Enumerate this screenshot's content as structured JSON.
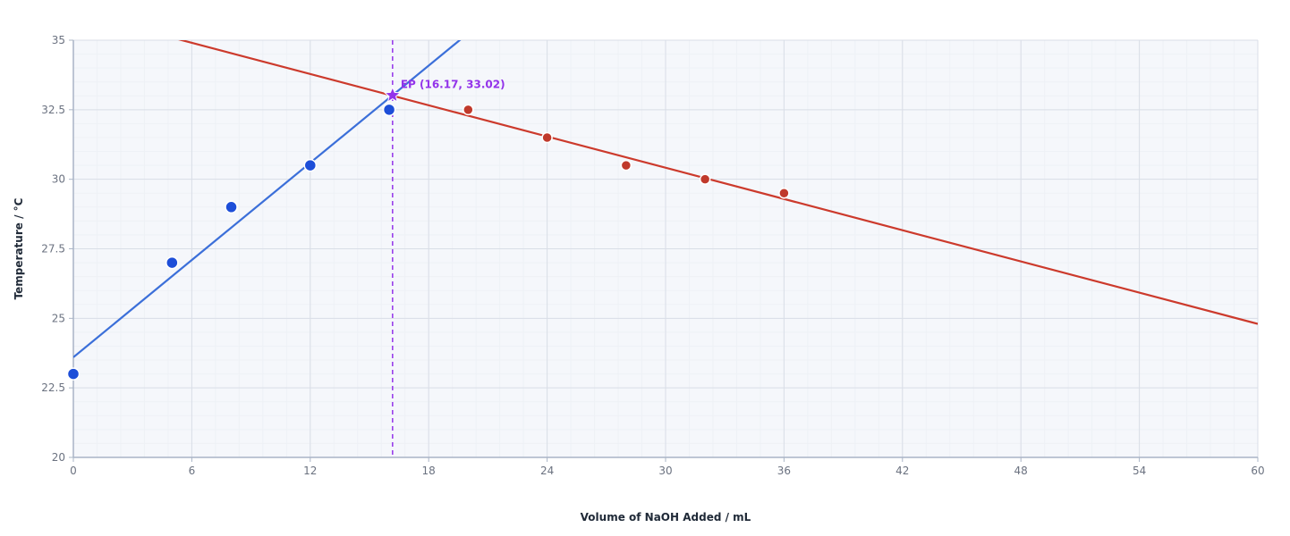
{
  "chart_data": {
    "type": "scatter",
    "title": "",
    "xlabel": "Volume of NaOH Added / mL",
    "ylabel": "Temperature / °C",
    "xlim": [
      0,
      60
    ],
    "ylim": [
      20,
      35
    ],
    "x_ticks": [
      "0",
      "6",
      "12",
      "18",
      "24",
      "30",
      "36",
      "42",
      "48",
      "54",
      "60"
    ],
    "x_tick_values": [
      0,
      6,
      12,
      18,
      24,
      30,
      36,
      42,
      48,
      54,
      60
    ],
    "y_ticks": [
      "20",
      "22.5",
      "25",
      "27.5",
      "30",
      "32.5",
      "35"
    ],
    "y_tick_values": [
      20,
      22.5,
      25,
      27.5,
      30,
      32.5,
      35
    ],
    "grid": true,
    "series": [
      {
        "color": "#1d4ed8",
        "points": [
          [
            0,
            23.0
          ],
          [
            5,
            27.0
          ],
          [
            8,
            29.0
          ],
          [
            12,
            30.5
          ],
          [
            16,
            32.5
          ]
        ]
      },
      {
        "color": "#c0392b",
        "points": [
          [
            20,
            32.5
          ],
          [
            24,
            31.5
          ],
          [
            28,
            30.5
          ],
          [
            32,
            30.0
          ],
          [
            36,
            29.5
          ]
        ]
      }
    ],
    "fit_lines": [
      {
        "color": "#3b6fd9",
        "p1": [
          0,
          23.6
        ],
        "p2": [
          16.17,
          33.02
        ]
      },
      {
        "color": "#cc3a2c",
        "p1": [
          5.5,
          35.0
        ],
        "p2": [
          60,
          24.8
        ]
      }
    ],
    "equivalence_point": {
      "x": 16.17,
      "y": 33.02,
      "label": "EP (16.17, 33.02)",
      "color": "#9333ea"
    },
    "colors": {
      "grid_major": "#d9dee7",
      "grid_minor": "#eef1f6",
      "plot_bg": "#f5f7fb",
      "axis": "#a9b4c6"
    }
  }
}
